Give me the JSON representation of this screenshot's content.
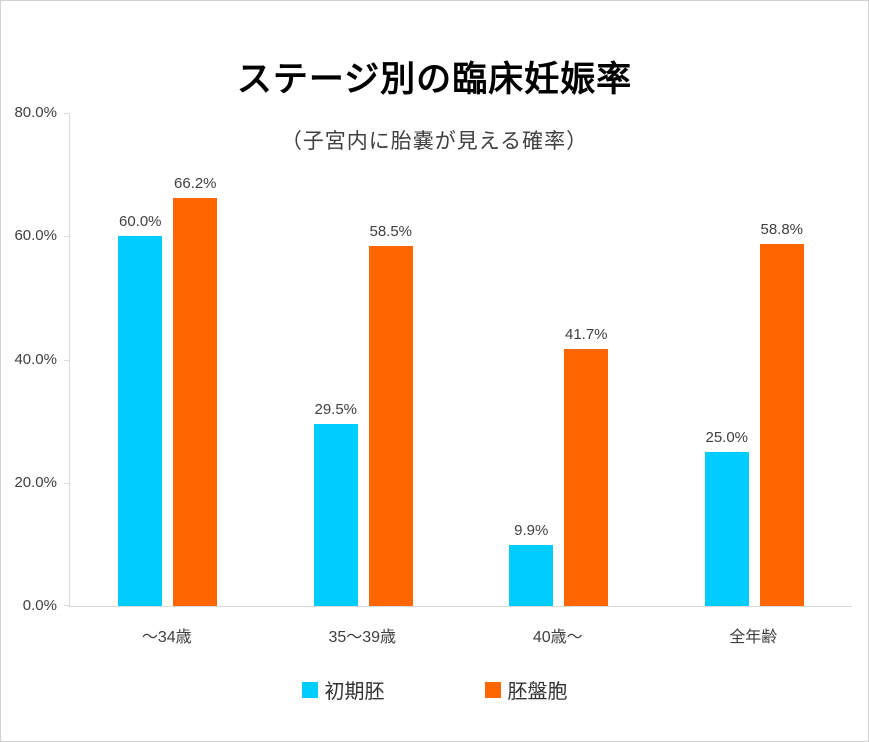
{
  "chart": {
    "title": "ステージ別の臨床妊娠率",
    "subtitle": "（子宮内に胎嚢が見える確率）"
  },
  "chart_data": {
    "type": "bar",
    "title": "ステージ別の臨床妊娠率",
    "subtitle": "（子宮内に胎嚢が見える確率）",
    "categories": [
      "～34歳",
      "35～39歳",
      "40歳～",
      "全年齢"
    ],
    "series": [
      {
        "name": "初期胚",
        "color": "#00CCFF",
        "values": [
          60.0,
          29.5,
          9.9,
          25.0
        ],
        "data_labels": [
          "60.0%",
          "29.5%",
          "9.9%",
          "25.0%"
        ]
      },
      {
        "name": "胚盤胞",
        "color": "#FF6600",
        "values": [
          66.2,
          58.5,
          41.7,
          58.8
        ],
        "data_labels": [
          "66.2%",
          "58.5%",
          "41.7%",
          "58.8%"
        ]
      }
    ],
    "xlabel": "",
    "ylabel": "",
    "ylim": [
      0,
      80
    ],
    "yticks_top_to_bottom": [
      "80.0%",
      "60.0%",
      "40.0%",
      "20.0%",
      "0.0%"
    ],
    "grid": false,
    "legend_position": "bottom",
    "style": {
      "axis_line_color": "#D9D9D9",
      "label_text_color": "#404040",
      "title_color": "#000000",
      "frame_border_color": "#D2D2D2"
    }
  }
}
